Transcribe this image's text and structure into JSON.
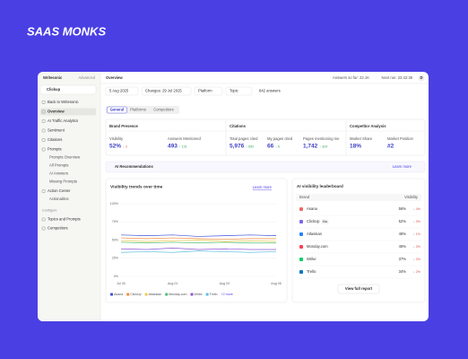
{
  "brand": "SAAS MONKS",
  "sidebar": {
    "app": "Writesonic",
    "plan": "Advanced",
    "project": "Clickup",
    "nav": [
      {
        "label": "Back to Writesonic"
      },
      {
        "label": "Overview"
      },
      {
        "label": "AI Traffic Analytics"
      },
      {
        "label": "Sentiment"
      },
      {
        "label": "Citations"
      },
      {
        "label": "Prompts",
        "children": [
          "Prompts Overview",
          "All Prompts",
          "AI Answers",
          "Missing Prompts"
        ]
      },
      {
        "label": "Action Center",
        "children": [
          "Actionables"
        ]
      }
    ],
    "section": "Configure",
    "config": [
      "Topics and Prompts",
      "Competitors"
    ]
  },
  "header": {
    "title": "Overview",
    "answers": "Answers so far: 22.1K",
    "next_run": "Next run: 23:42:38",
    "avatar": "D"
  },
  "filters": [
    "5 Aug 2025",
    "Changes: 29 Jul 2025",
    "Platform",
    "Topic",
    "842 answers"
  ],
  "tabs": [
    "General",
    "Platforms",
    "Competitors"
  ],
  "metrics": [
    {
      "title": "Brand Presence",
      "items": [
        {
          "label": "Visibility",
          "value": "52%",
          "change": "↓ 3"
        },
        {
          "label": "Answers Mentioned",
          "value": "493",
          "change": "↑ 131"
        }
      ]
    },
    {
      "title": "Citations",
      "items": [
        {
          "label": "Total pages cited",
          "value": "5,976",
          "change": "↑ 692"
        },
        {
          "label": "My pages cited",
          "value": "66",
          "change": "↑ 6"
        },
        {
          "label": "Pages mentioning me",
          "value": "1,742",
          "change": "↑ 324"
        }
      ]
    },
    {
      "title": "Competitor Analysis",
      "items": [
        {
          "label": "Market Share",
          "value": "18%"
        },
        {
          "label": "Market Position",
          "value": "#2"
        }
      ]
    }
  ],
  "recommendations": {
    "title": "AI Recommendations",
    "link": "Learn more"
  },
  "chart_data": {
    "type": "line",
    "title": "Visibility trends over time",
    "link": "Learn more",
    "categories": [
      "Jul 30",
      null,
      "Aug 01",
      null,
      "Aug 03",
      null,
      "Aug 05"
    ],
    "ylim": [
      0,
      100
    ],
    "yticks": [
      {
        "value": 0,
        "label": "0%"
      },
      {
        "value": 25,
        "label": "25%"
      },
      {
        "value": 50,
        "label": "50%"
      },
      {
        "value": 75,
        "label": "75%"
      },
      {
        "value": 100,
        "label": "100%"
      }
    ],
    "grid": true,
    "series": [
      {
        "name": "Asana",
        "color": "#3f51d8",
        "values": [
          57,
          56,
          57,
          55,
          56,
          57,
          56
        ]
      },
      {
        "name": "ClickUp",
        "color": "#f28c38",
        "values": [
          53,
          52,
          53,
          52,
          51,
          52,
          52
        ]
      },
      {
        "name": "Atlassian",
        "color": "#f2c94c",
        "values": [
          49,
          48,
          49,
          50,
          48,
          49,
          48
        ]
      },
      {
        "name": "Monday.com",
        "color": "#4fbf73",
        "values": [
          47,
          46,
          47,
          46,
          47,
          46,
          46
        ]
      },
      {
        "name": "Wrike",
        "color": "#8e55d9",
        "values": [
          38,
          37,
          39,
          37,
          38,
          37,
          37
        ]
      },
      {
        "name": "Trello",
        "color": "#5bc0de",
        "values": [
          33,
          34,
          33,
          35,
          34,
          33,
          34
        ]
      }
    ],
    "more": "+2 more"
  },
  "leaderboard": {
    "title": "AI visibility leaderboard",
    "columns": [
      "Brand",
      "Visibility"
    ],
    "rows": [
      {
        "brand": "Asana",
        "visibility": "56%",
        "change": "↓ 4%"
      },
      {
        "brand": "ClickUp",
        "badge": "You",
        "visibility": "52%",
        "change": "↓ 3%"
      },
      {
        "brand": "Atlassian",
        "visibility": "48%",
        "change": "↓ 1%"
      },
      {
        "brand": "Monday.com",
        "visibility": "46%",
        "change": "↓ 3%"
      },
      {
        "brand": "Wrike",
        "visibility": "37%",
        "change": "↓ 3%"
      },
      {
        "brand": "Trello",
        "visibility": "34%",
        "change": "↓ 2%"
      }
    ],
    "button": "View full report"
  }
}
